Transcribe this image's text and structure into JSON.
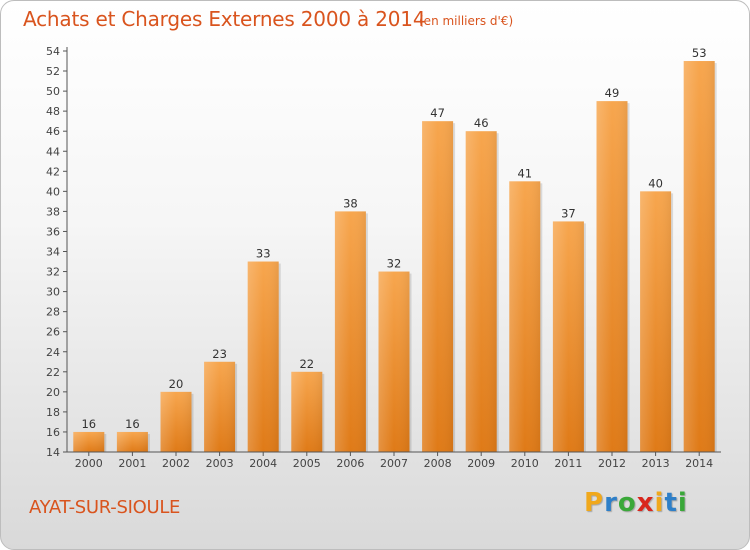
{
  "header": {
    "title": "Achats et Charges Externes 2000 à 2014",
    "unit": "(en milliers d'€)"
  },
  "footer": {
    "commune": "AYAT-SUR-SIOULE",
    "logo": {
      "text": "Proxiti",
      "letters": [
        "P",
        "r",
        "o",
        "x",
        "i",
        "t",
        "i"
      ],
      "colors": [
        "#f0a81c",
        "#2e7fc8",
        "#3aa839",
        "#d9261c",
        "#f0a81c",
        "#2e7fc8",
        "#3aa839"
      ]
    }
  },
  "chart_data": {
    "type": "bar",
    "categories": [
      "2000",
      "2001",
      "2002",
      "2003",
      "2004",
      "2005",
      "2006",
      "2007",
      "2008",
      "2009",
      "2010",
      "2011",
      "2012",
      "2013",
      "2014"
    ],
    "values": [
      16,
      16,
      20,
      23,
      33,
      22,
      38,
      32,
      47,
      46,
      41,
      37,
      49,
      40,
      53
    ],
    "title": "Achats et Charges Externes 2000 à 2014",
    "subtitle": "(en milliers d'€)",
    "xlabel": "",
    "ylabel": "",
    "ylim": [
      14,
      54
    ],
    "yticks": [
      14,
      16,
      18,
      20,
      22,
      24,
      26,
      28,
      30,
      32,
      34,
      36,
      38,
      40,
      42,
      44,
      46,
      48,
      50,
      52,
      54
    ],
    "grid": false,
    "legend": "none",
    "bar_color": "#f0922e"
  }
}
